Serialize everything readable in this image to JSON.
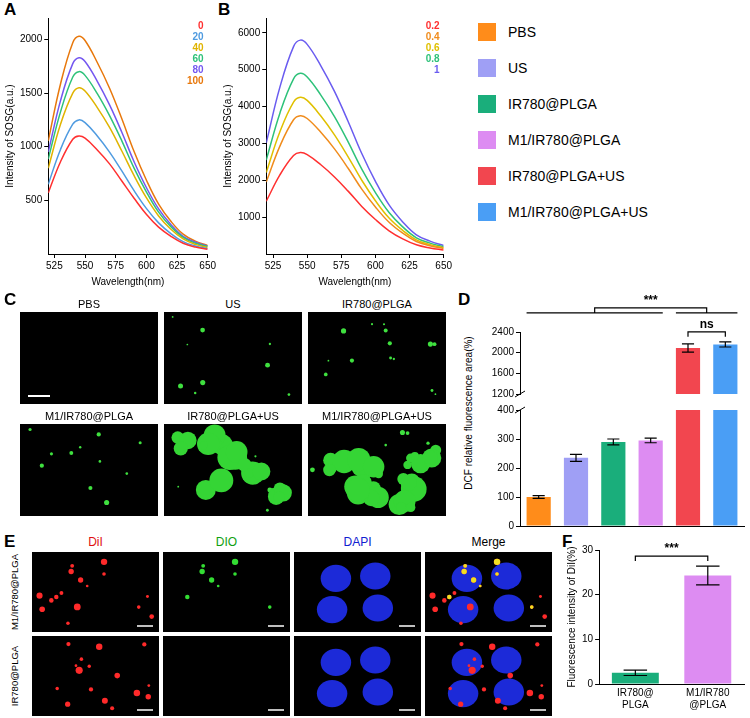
{
  "chart_data": [
    {
      "panel": "A",
      "type": "line",
      "xlabel": "Wavelength(nm)",
      "ylabel": "Intensity of SOSG(a.u.)",
      "x": [
        520,
        530,
        540,
        545,
        550,
        560,
        570,
        580,
        590,
        600,
        610,
        620,
        630,
        640,
        650
      ],
      "series": [
        {
          "name": "0",
          "color": "#ff3030",
          "values": [
            570,
            860,
            1070,
            1100,
            1080,
            970,
            840,
            680,
            520,
            370,
            250,
            165,
            100,
            65,
            45
          ]
        },
        {
          "name": "20",
          "color": "#4f9be0",
          "values": [
            650,
            975,
            1210,
            1250,
            1225,
            1100,
            950,
            775,
            590,
            425,
            290,
            190,
            115,
            75,
            50
          ]
        },
        {
          "name": "40",
          "color": "#e0b400",
          "values": [
            800,
            1210,
            1500,
            1550,
            1520,
            1365,
            1180,
            960,
            730,
            525,
            355,
            230,
            140,
            90,
            60
          ]
        },
        {
          "name": "60",
          "color": "#2ec27a",
          "values": [
            885,
            1325,
            1650,
            1700,
            1665,
            1495,
            1290,
            1055,
            800,
            580,
            390,
            255,
            155,
            100,
            70
          ]
        },
        {
          "name": "80",
          "color": "#7457f0",
          "values": [
            950,
            1430,
            1775,
            1830,
            1795,
            1610,
            1390,
            1135,
            860,
            620,
            420,
            275,
            165,
            110,
            75
          ]
        },
        {
          "name": "100",
          "color": "#e8780c",
          "values": [
            1055,
            1585,
            1970,
            2030,
            1990,
            1785,
            1545,
            1260,
            955,
            690,
            465,
            305,
            185,
            120,
            80
          ]
        }
      ],
      "xlim": [
        520,
        650
      ],
      "xticks": [
        525,
        550,
        575,
        600,
        625,
        650
      ],
      "ylim": [
        0,
        2200
      ],
      "yticks": [
        500,
        1000,
        1500,
        2000
      ],
      "legend": "upper right",
      "grid": false
    },
    {
      "panel": "B",
      "type": "line",
      "xlabel": "Wavelength(nm)",
      "ylabel": "Intensity of SOSG(a.u.)",
      "x": [
        520,
        530,
        540,
        545,
        550,
        560,
        570,
        580,
        590,
        600,
        610,
        620,
        630,
        640,
        650
      ],
      "series": [
        {
          "name": "0.2",
          "color": "#ff3030",
          "values": [
            1430,
            2145,
            2670,
            2750,
            2695,
            2420,
            2090,
            1705,
            1290,
            935,
            630,
            410,
            250,
            165,
            110
          ]
        },
        {
          "name": "0.4",
          "color": "#f08c1c",
          "values": [
            1950,
            2925,
            3640,
            3750,
            3675,
            3300,
            2850,
            2325,
            1760,
            1275,
            860,
            565,
            340,
            225,
            150
          ]
        },
        {
          "name": "0.6",
          "color": "#e0c000",
          "values": [
            2210,
            3315,
            4120,
            4250,
            4165,
            3740,
            3230,
            2635,
            2000,
            1445,
            975,
            640,
            385,
            255,
            170
          ]
        },
        {
          "name": "0.8",
          "color": "#2ec27a",
          "values": [
            2550,
            3820,
            4750,
            4900,
            4800,
            4310,
            3725,
            3040,
            2300,
            1665,
            1125,
            735,
            440,
            295,
            195
          ]
        },
        {
          "name": "1",
          "color": "#6a5cf0",
          "values": [
            3015,
            4525,
            5625,
            5800,
            5685,
            5105,
            4410,
            3595,
            2725,
            1970,
            1330,
            870,
            520,
            350,
            230
          ]
        }
      ],
      "xlim": [
        520,
        650
      ],
      "xticks": [
        525,
        550,
        575,
        600,
        625,
        650
      ],
      "ylim": [
        0,
        6400
      ],
      "yticks": [
        1000,
        2000,
        3000,
        4000,
        5000,
        6000
      ],
      "legend": "upper right",
      "grid": false
    },
    {
      "panel": "D",
      "type": "bar",
      "ylabel": "DCF relative fluorescence area(%)",
      "categories": [
        "PBS",
        "US",
        "IR780@PLGA",
        "M1/IR780@PLGA",
        "IR780@PLGA+US",
        "M1/IR780@PLGA+US"
      ],
      "colors": [
        "#ff8c1a",
        "#9f9ff5",
        "#1aae7b",
        "#dd8cf2",
        "#f2464f",
        "#4a9ef5"
      ],
      "values": [
        100,
        235,
        290,
        295,
        2090,
        2160
      ],
      "errors": [
        5,
        12,
        10,
        8,
        80,
        50
      ],
      "ylim": [
        0,
        2400
      ],
      "y_break": [
        400,
        1200
      ],
      "yticks": [
        0,
        100,
        200,
        300,
        400,
        1200,
        1600,
        2000,
        2400
      ],
      "tick_labels": "y",
      "legend": "upper right",
      "grid": false,
      "annotations": [
        {
          "text": "***",
          "groups": [
            [
              0,
              3
            ],
            [
              4,
              5
            ]
          ]
        },
        {
          "text": "ns",
          "groups": [
            [
              4,
              4
            ],
            [
              5,
              5
            ]
          ]
        }
      ]
    },
    {
      "panel": "F",
      "type": "bar",
      "ylabel": "Fluorescence intensity of DiI(%)",
      "categories": [
        [
          "IR780@",
          "PLGA"
        ],
        [
          "M1/IR780",
          "@PLGA"
        ]
      ],
      "colors": [
        "#1aae7b",
        "#dd8cf2"
      ],
      "values": [
        2.5,
        24.3
      ],
      "errors": [
        0.6,
        2.1
      ],
      "ylim": [
        0,
        30
      ],
      "yticks": [
        0,
        10,
        20,
        30
      ],
      "grid": false,
      "annotations": [
        {
          "text": "***",
          "groups": [
            [
              0,
              0
            ],
            [
              1,
              1
            ]
          ]
        }
      ]
    }
  ],
  "images": [
    {
      "panel": "C",
      "labels": [
        "PBS",
        "US",
        "IR780@PLGA",
        "M1/IR780@PLGA",
        "IR780@PLGA+US",
        "M1/IR780@PLGA+US"
      ]
    },
    {
      "panel": "E",
      "columns": [
        "DiI",
        "DIO",
        "DAPI",
        "Merge"
      ],
      "rows": [
        "M1/IR780@PLGA",
        "IR780@PLGA"
      ]
    }
  ]
}
